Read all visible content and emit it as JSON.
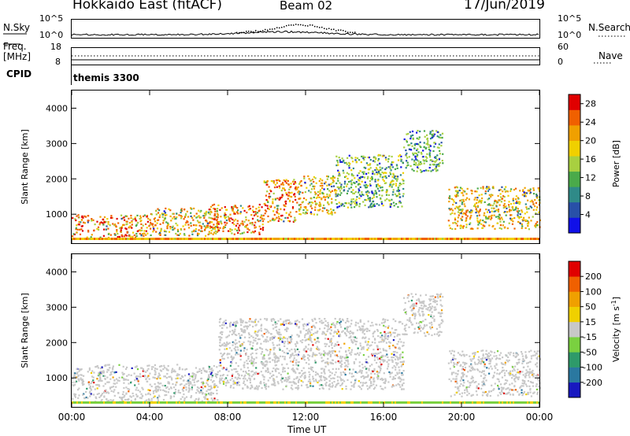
{
  "header": {
    "radar_title": "Hokkaido East (fitACF)",
    "beam": "Beam 02",
    "date": "17/Jun/2019"
  },
  "summary": {
    "nsky_label": "N.Sky",
    "nsky_ticks": [
      "10^5",
      "10^0"
    ],
    "nsearch_label": "N.Search",
    "nsearch_ticks": [
      "10^5",
      "10^0"
    ],
    "freq_label": "Freq.",
    "freq_unit": "[MHz]",
    "freq_ticks": [
      "18",
      "8"
    ],
    "nave_label": "Nave",
    "nave_ticks": [
      "60",
      "0"
    ],
    "cpid_label": "CPID",
    "cpid_value": "themis 3300"
  },
  "chart_data": [
    {
      "type": "heatmap",
      "panel": "power",
      "ylabel": "Slant Range [km]",
      "xlabel": "Time UT",
      "xticks": [
        "00:00",
        "04:00",
        "08:00",
        "12:00",
        "16:00",
        "20:00",
        "00:00"
      ],
      "xlim_hours": [
        0,
        24
      ],
      "yticks": [
        1000,
        2000,
        3000,
        4000
      ],
      "ylim": [
        180,
        4500
      ],
      "colorbar": {
        "label": "Power [dB]",
        "ticks": [
          4,
          8,
          12,
          16,
          20,
          24,
          28
        ],
        "range": [
          0,
          30
        ],
        "colors": [
          "#1010e8",
          "#2850a8",
          "#2f8a88",
          "#4aaa4a",
          "#a8d040",
          "#f0d000",
          "#f0a000",
          "#f06000",
          "#e00000"
        ]
      },
      "echo_regions": [
        {
          "t": [
            0.0,
            4.0
          ],
          "range_km": [
            350,
            1000
          ],
          "power_db": 28
        },
        {
          "t": [
            4.0,
            7.5
          ],
          "range_km": [
            400,
            1200
          ],
          "power_db": 26
        },
        {
          "t": [
            7.0,
            9.8
          ],
          "range_km": [
            450,
            1300
          ],
          "power_db": 28
        },
        {
          "t": [
            9.8,
            11.5
          ],
          "range_km": [
            800,
            2000
          ],
          "power_db": 28
        },
        {
          "t": [
            11.5,
            13.5
          ],
          "range_km": [
            1000,
            2100
          ],
          "power_db": 24
        },
        {
          "t": [
            13.5,
            17.0
          ],
          "range_km": [
            1200,
            2700
          ],
          "power_db": 18
        },
        {
          "t": [
            17.0,
            19.0
          ],
          "range_km": [
            2200,
            3400
          ],
          "power_db": 16
        },
        {
          "t": [
            19.3,
            24.0
          ],
          "range_km": [
            600,
            1800
          ],
          "power_db": 24
        }
      ]
    },
    {
      "type": "heatmap",
      "panel": "velocity",
      "ylabel": "Slant Range [km]",
      "xlabel": "Time UT",
      "xticks": [
        "00:00",
        "04:00",
        "08:00",
        "12:00",
        "16:00",
        "20:00",
        "00:00"
      ],
      "xlim_hours": [
        0,
        24
      ],
      "yticks": [
        1000,
        2000,
        3000,
        4000
      ],
      "ylim": [
        180,
        4500
      ],
      "colorbar": {
        "label": "Velocity [m s",
        "label_sup": "-1",
        "label_end": "]",
        "ticks": [
          200,
          100,
          50,
          15,
          -15,
          -50,
          -100,
          -200
        ],
        "range": [
          -250,
          250
        ],
        "colors": [
          "#1818c0",
          "#2a78a0",
          "#2e9a6a",
          "#7ad040",
          "#c8c8c8",
          "#f0d000",
          "#f0a000",
          "#f06000",
          "#e00000"
        ]
      },
      "echo_regions": [
        {
          "t": [
            0.0,
            7.5
          ],
          "range_km": [
            350,
            1400
          ],
          "velocity_ms": 0
        },
        {
          "t": [
            7.5,
            17.0
          ],
          "range_km": [
            700,
            2700
          ],
          "velocity_ms": 0
        },
        {
          "t": [
            17.0,
            19.0
          ],
          "range_km": [
            2200,
            3400
          ],
          "velocity_ms": 0
        },
        {
          "t": [
            19.3,
            24.0
          ],
          "range_km": [
            500,
            1800
          ],
          "velocity_ms": 0
        }
      ]
    }
  ],
  "footer": {
    "xlabel": "Time UT"
  }
}
